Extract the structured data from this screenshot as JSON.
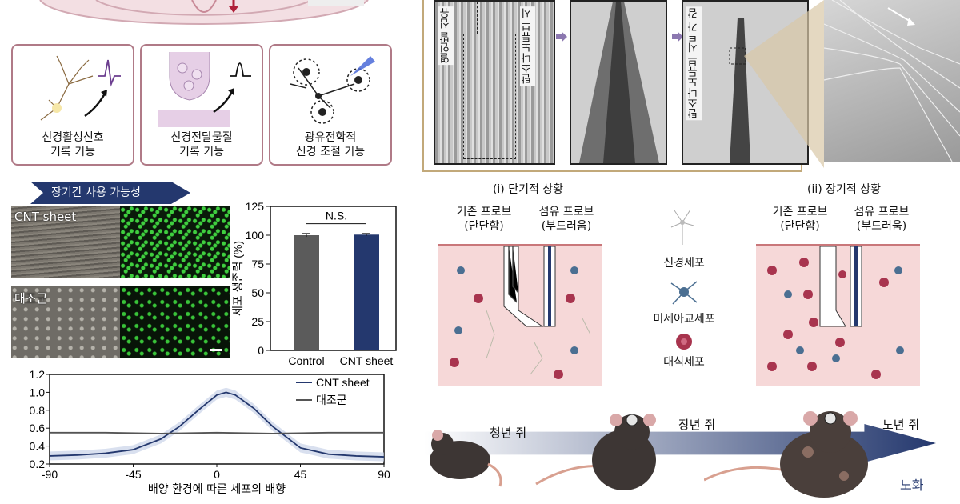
{
  "top_left": {
    "cards": [
      {
        "title_line1": "신경활성신호",
        "title_line2": "기록 기능"
      },
      {
        "title_line1": "신경전달물질",
        "title_line2": "기록 기능"
      },
      {
        "title_line1": "광유전학적",
        "title_line2": "신경 조절 기능"
      }
    ]
  },
  "longterm": {
    "banner": "장기간 사용 가능성",
    "panel_labels": [
      "CNT sheet",
      "대조군"
    ]
  },
  "bar_chart": {
    "chart_data": {
      "type": "bar",
      "categories": [
        "Control",
        "CNT sheet"
      ],
      "values": [
        100,
        100.5
      ],
      "errors": [
        1.5,
        1.0
      ],
      "colors": [
        "#5b5b5b",
        "#24386e"
      ],
      "ylabel": "세포 생존력 (%)",
      "yticks": [
        "0",
        "25",
        "50",
        "75",
        "100",
        "125"
      ],
      "ylim": [
        0,
        125
      ],
      "annotation": "N.S."
    }
  },
  "line_chart": {
    "chart_data": {
      "type": "line",
      "xlabel": "배양 환경에 따른 세포의 배향",
      "xticks": [
        "-90",
        "-45",
        "0",
        "45",
        "90"
      ],
      "yticks": [
        "0.2",
        "0.4",
        "0.6",
        "0.8",
        "1.0",
        "1.2"
      ],
      "xlim": [
        -90,
        90
      ],
      "ylim": [
        0.2,
        1.2
      ],
      "series": [
        {
          "name": "CNT sheet",
          "color": "#24386e",
          "x": [
            -90,
            -75,
            -60,
            -45,
            -30,
            -20,
            -10,
            0,
            5,
            10,
            20,
            30,
            45,
            60,
            75,
            90
          ],
          "y": [
            0.29,
            0.3,
            0.32,
            0.36,
            0.48,
            0.62,
            0.8,
            0.97,
            1.0,
            0.97,
            0.82,
            0.62,
            0.38,
            0.31,
            0.29,
            0.28
          ]
        },
        {
          "name": "대조군",
          "color": "#555555",
          "x": [
            -90,
            -60,
            -30,
            0,
            30,
            60,
            90
          ],
          "y": [
            0.55,
            0.55,
            0.54,
            0.55,
            0.54,
            0.55,
            0.55
          ]
        }
      ]
    }
  },
  "sem_panel": {
    "labels": [
      "열인발 섬유",
      "탄소나노튜브 시",
      "탄소나노튜브 시트가 감"
    ]
  },
  "tissue_section": {
    "short_term": {
      "title": "(i) 단기적 상황",
      "left": "기존 프로브\n(단단함)",
      "right": "섬유 프로브\n(부드러움)"
    },
    "long_term": {
      "title": "(ii) 장기적 상황",
      "left": "기존 프로브\n(단단함)",
      "right": "섬유 프로브\n(부드러움)"
    },
    "legend": [
      "신경세포",
      "미세아교세포",
      "대식세포"
    ]
  },
  "aging": {
    "mice": [
      "청년 쥐",
      "장년 쥐",
      "노년 쥐"
    ],
    "axis_label": "노화"
  },
  "colors": {
    "navy": "#24386e",
    "card_border": "#b07a87",
    "tissue": "#f6d8d8",
    "macrophage": "#a8344e"
  }
}
